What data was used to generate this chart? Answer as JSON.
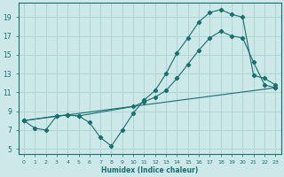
{
  "xlabel": "Humidex (Indice chaleur)",
  "bg_color": "#cce8e8",
  "grid_color": "#b0d4d4",
  "line_color": "#1a6e6e",
  "xlim": [
    -0.5,
    23.5
  ],
  "ylim": [
    4.5,
    20.5
  ],
  "xticks": [
    0,
    1,
    2,
    3,
    4,
    5,
    6,
    7,
    8,
    9,
    10,
    11,
    12,
    13,
    14,
    15,
    16,
    17,
    18,
    19,
    20,
    21,
    22,
    23
  ],
  "yticks": [
    5,
    7,
    9,
    11,
    13,
    15,
    17,
    19
  ],
  "line1_x": [
    0,
    1,
    2,
    3,
    4,
    5,
    6,
    7,
    8,
    9,
    10,
    11,
    12,
    13,
    14,
    15,
    16,
    17,
    18,
    19,
    20,
    21,
    22,
    23
  ],
  "line1_y": [
    8.0,
    7.2,
    7.0,
    8.5,
    8.6,
    8.5,
    7.8,
    6.2,
    5.3,
    7.0,
    8.8,
    10.2,
    11.2,
    13.0,
    15.2,
    16.8,
    18.5,
    19.5,
    19.8,
    19.3,
    19.0,
    12.8,
    12.5,
    11.8
  ],
  "line2_x": [
    0,
    3,
    4,
    5,
    10,
    11,
    12,
    13,
    14,
    15,
    16,
    17,
    18,
    19,
    20,
    21,
    22,
    23
  ],
  "line2_y": [
    8.0,
    8.5,
    8.6,
    8.5,
    9.5,
    10.0,
    10.5,
    11.2,
    12.5,
    14.0,
    15.5,
    16.8,
    17.5,
    17.0,
    16.8,
    14.2,
    11.8,
    11.5
  ],
  "line3_x": [
    0,
    23
  ],
  "line3_y": [
    8.0,
    11.5
  ]
}
